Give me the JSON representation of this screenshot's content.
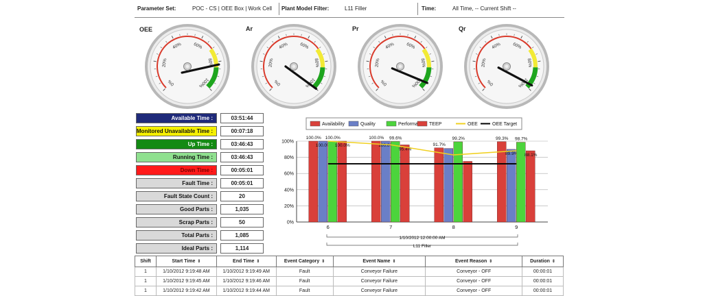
{
  "filters": {
    "parameter_set_label": "Parameter Set:",
    "parameter_set_value": "POC - CS | OEE Box | Work Cell",
    "plant_model_label": "Plant Model Filter:",
    "plant_model_value": "L11 Filler",
    "time_label": "Time:",
    "time_value": "All Time, -- Current Shift --"
  },
  "gauges": [
    {
      "title": "OEE",
      "value_pct": 82
    },
    {
      "title": "Ar",
      "value_pct": 100
    },
    {
      "title": "Pr",
      "value_pct": 95
    },
    {
      "title": "Qr",
      "value_pct": 97
    }
  ],
  "gauge_ticks": [
    "0%",
    "20%",
    "40%",
    "60%",
    "80%",
    "100%"
  ],
  "kpis": [
    {
      "label": "Available Time :",
      "value": "03:51:44",
      "color": "#1f2a7a",
      "text_color": "#ffffff"
    },
    {
      "label": "Monitored Unavailable Time :",
      "value": "00:07:18",
      "color": "#f5f000",
      "text_color": "#111111"
    },
    {
      "label": "Up Time :",
      "value": "03:46:43",
      "color": "#138a13",
      "text_color": "#ffffff"
    },
    {
      "label": "Running Time :",
      "value": "03:46:43",
      "color": "#8fe08f",
      "text_color": "#111111"
    },
    {
      "label": "Down Time :",
      "value": "00:05:01",
      "color": "#ff1a1a",
      "text_color": "#7a0000"
    },
    {
      "label": "Fault Time :",
      "value": "00:05:01",
      "color": "#d9d9d9",
      "text_color": "#111111"
    },
    {
      "label": "Fault State Count :",
      "value": "20",
      "color": "#d9d9d9",
      "text_color": "#111111"
    },
    {
      "label": "Good Parts :",
      "value": "1,035",
      "color": "#d9d9d9",
      "text_color": "#111111"
    },
    {
      "label": "Scrap Parts :",
      "value": "50",
      "color": "#d9d9d9",
      "text_color": "#111111"
    },
    {
      "label": "Total Parts :",
      "value": "1,085",
      "color": "#d9d9d9",
      "text_color": "#111111"
    },
    {
      "label": "Ideal Parts :",
      "value": "1,114",
      "color": "#d9d9d9",
      "text_color": "#111111"
    }
  ],
  "chart_data": {
    "type": "bar",
    "categories": [
      "6",
      "7",
      "8",
      "9"
    ],
    "ylim": [
      0,
      100
    ],
    "yticks": [
      "0%",
      "20%",
      "40%",
      "60%",
      "80%",
      "100%"
    ],
    "series": [
      {
        "name": "Availability",
        "kind": "bar",
        "color": "#d9403a",
        "values": [
          100.0,
          100.0,
          91.7,
          99.3
        ],
        "labels": [
          "100.0%",
          "100.0%",
          "91.7%",
          "99.3%"
        ]
      },
      {
        "name": "Quality",
        "kind": "bar",
        "color": "#6a7fc7",
        "values": [
          100.0,
          100.0,
          91.0,
          89.9
        ],
        "labels": [
          "100.0%",
          "100.0%",
          "",
          "89.9%"
        ]
      },
      {
        "name": "Performance",
        "kind": "bar",
        "color": "#4cd43c",
        "values": [
          100.0,
          99.6,
          99.2,
          98.7
        ],
        "labels": [
          "100.0%",
          "99.6%",
          "99.2%",
          "98.7%"
        ]
      },
      {
        "name": "TEEP",
        "kind": "bar",
        "color": "#d9403a",
        "values": [
          100.0,
          95.4,
          75.0,
          88.1
        ],
        "labels": [
          "100.0%",
          "95.4%",
          "",
          "88.1%"
        ]
      },
      {
        "name": "OEE",
        "kind": "line",
        "color": "#f0d020",
        "values": [
          100.0,
          95.4,
          83.0,
          88.1
        ]
      },
      {
        "name": "OEE Target",
        "kind": "line",
        "color": "#000000",
        "values": [
          72,
          72,
          72,
          72
        ]
      }
    ],
    "x_group_label": "1/10/2012 12:00:00 AM",
    "x_group_sublabel": "L11 Filler",
    "legend": "top"
  },
  "events": {
    "columns": [
      "Shift",
      "Start Time",
      "End Time",
      "Event Category",
      "Event Name",
      "Event Reason",
      "Duration"
    ],
    "rows": [
      [
        "1",
        "1/10/2012 9:19:48 AM",
        "1/10/2012 9:19:49 AM",
        "Fault",
        "Conveyor Failure",
        "Conveyor - OFF",
        "00:00:01"
      ],
      [
        "1",
        "1/10/2012 9:19:45 AM",
        "1/10/2012 9:19:46 AM",
        "Fault",
        "Conveyor Failure",
        "Conveyor - OFF",
        "00:00:01"
      ],
      [
        "1",
        "1/10/2012 9:19:42 AM",
        "1/10/2012 9:19:44 AM",
        "Fault",
        "Conveyor Failure",
        "Conveyor - OFF",
        "00:00:01"
      ]
    ]
  }
}
